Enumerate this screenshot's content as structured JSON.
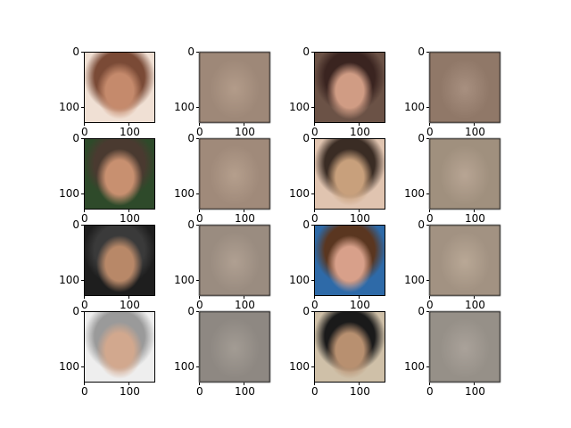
{
  "figure": {
    "rows": 4,
    "cols": 4,
    "ytick_labels": [
      "0",
      "100"
    ],
    "xtick_labels": [
      "0",
      "100"
    ],
    "panel_kinds": [
      "photo",
      "reconstruction",
      "photo",
      "reconstruction"
    ],
    "photo_colors": [
      [
        "#7a4a36",
        "#c58a6c",
        "#f0e0d4"
      ],
      [
        "#3a2420",
        "#d09c84",
        "#6b5246"
      ],
      [
        "#4a3a30",
        "#c89070",
        "#2e4a2a"
      ],
      [
        "#3a2c24",
        "#c8a07c",
        "#e0c4b0"
      ],
      [
        "#3a3a3a",
        "#b88868",
        "#1e1e1e"
      ],
      [
        "#5a3620",
        "#d8a08a",
        "#2e6aa8"
      ],
      [
        "#9a9a9a",
        "#d2a88e",
        "#eeeeee"
      ],
      [
        "#1a1a1a",
        "#b89070",
        "#cfc0a8"
      ]
    ],
    "recon_colors": [
      [
        "#9e8878",
        "#b39c8a"
      ],
      [
        "#907868",
        "#a89080"
      ],
      [
        "#a08a7a",
        "#b59f8d"
      ],
      [
        "#a0907e",
        "#b8a594"
      ],
      [
        "#9a8c80",
        "#b0a092"
      ],
      [
        "#a29282",
        "#b9a896"
      ],
      [
        "#8e8882",
        "#a39c94"
      ],
      [
        "#969088",
        "#aaa29a"
      ]
    ]
  }
}
